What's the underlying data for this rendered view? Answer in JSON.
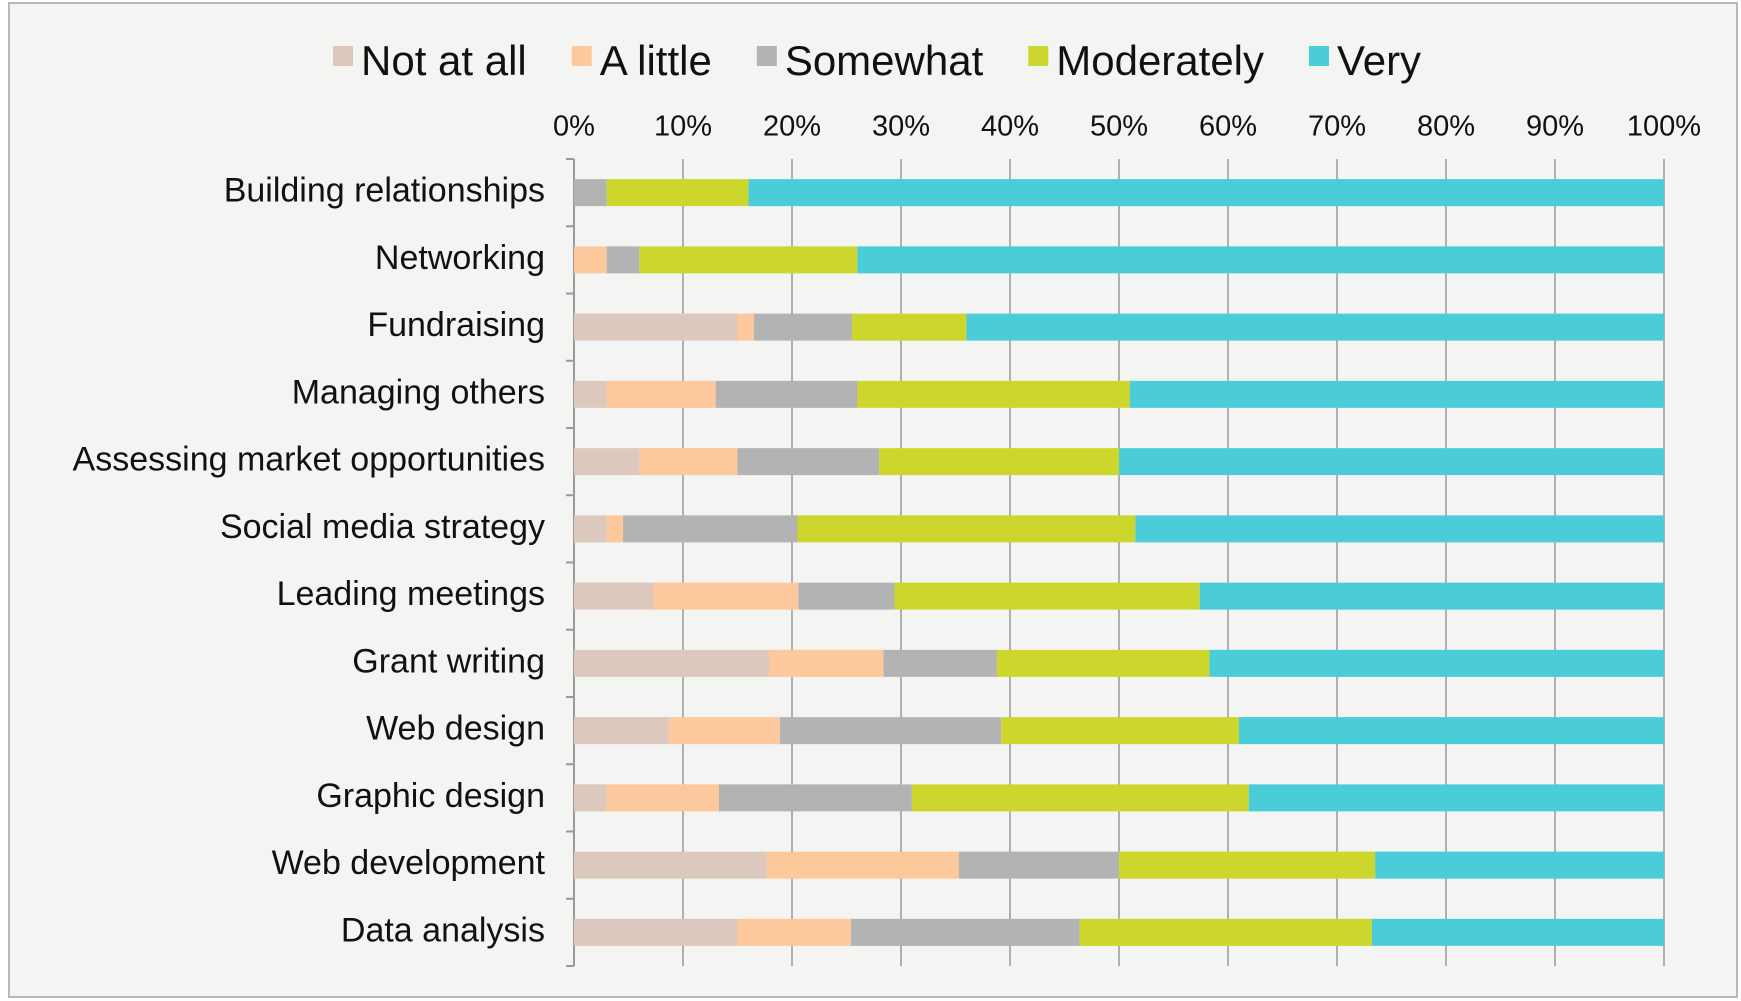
{
  "chart_data": {
    "type": "stacked_barh",
    "categories": [
      "Building relationships",
      "Networking",
      "Fundraising",
      "Managing others",
      "Assessing market opportunities",
      "Social media strategy",
      "Leading meetings",
      "Grant writing",
      "Web design",
      "Graphic design",
      "Web development",
      "Data analysis"
    ],
    "series": [
      {
        "name": "Not at all",
        "color": "#dcc8bc",
        "values": [
          0,
          0,
          15,
          3,
          6,
          3,
          7.3,
          17.9,
          8.7,
          3,
          17.7,
          15
        ]
      },
      {
        "name": "A little",
        "color": "#fcc89c",
        "values": [
          0,
          3,
          1.5,
          10,
          9,
          1.5,
          13.3,
          10.5,
          10.2,
          10.3,
          17.6,
          10.4
        ]
      },
      {
        "name": "Somewhat",
        "color": "#b3b3b3",
        "values": [
          3,
          3,
          9,
          13,
          13,
          16,
          8.8,
          10.4,
          20.3,
          17.7,
          14.7,
          21
        ]
      },
      {
        "name": "Moderately",
        "color": "#cdd62c",
        "values": [
          13,
          20,
          10.5,
          25,
          22,
          31,
          28,
          19.5,
          21.8,
          30.9,
          23.5,
          26.8
        ]
      },
      {
        "name": "Very",
        "color": "#4acdd8",
        "values": [
          84,
          74,
          64,
          49,
          50,
          48.5,
          42.6,
          41.7,
          39,
          38.1,
          26.5,
          26.8
        ]
      }
    ],
    "xlim": [
      0,
      100
    ],
    "xticks": [
      {
        "value": 0,
        "label": "0%"
      },
      {
        "value": 10,
        "label": "10%"
      },
      {
        "value": 20,
        "label": "20%"
      },
      {
        "value": 30,
        "label": "30%"
      },
      {
        "value": 40,
        "label": "40%"
      },
      {
        "value": 50,
        "label": "50%"
      },
      {
        "value": 60,
        "label": "60%"
      },
      {
        "value": 70,
        "label": "70%"
      },
      {
        "value": 80,
        "label": "80%"
      },
      {
        "value": 90,
        "label": "90%"
      },
      {
        "value": 100,
        "label": "100%"
      }
    ],
    "grid": true,
    "legend": "top"
  }
}
